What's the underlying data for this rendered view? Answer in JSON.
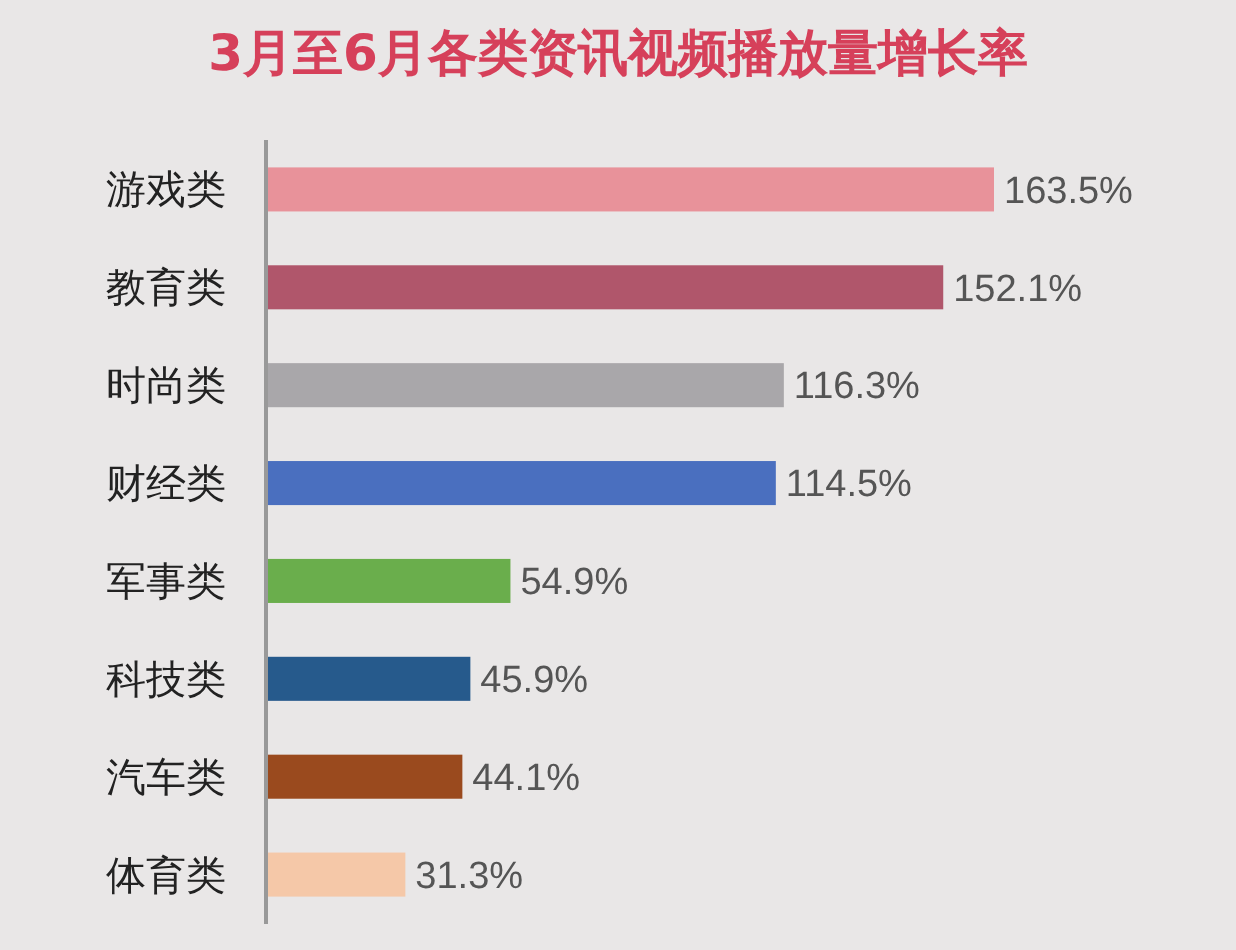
{
  "chart_data": {
    "type": "bar",
    "orientation": "horizontal",
    "title": "3月至6月各类资讯视频播放量增长率",
    "categories": [
      "游戏类",
      "教育类",
      "时尚类",
      "财经类",
      "军事类",
      "科技类",
      "汽车类",
      "体育类"
    ],
    "values": [
      163.5,
      152.1,
      116.3,
      114.5,
      54.9,
      45.9,
      44.1,
      31.3
    ],
    "colors": [
      "#e8929a",
      "#b0566b",
      "#a9a7aa",
      "#4a6fbf",
      "#6aae4c",
      "#265a8c",
      "#9a4a1e",
      "#f5c8a8"
    ],
    "value_labels": [
      "163.5%",
      "152.1%",
      "116.3%",
      "114.5%",
      "54.9%",
      "45.9%",
      "44.1%",
      "31.3%"
    ]
  }
}
